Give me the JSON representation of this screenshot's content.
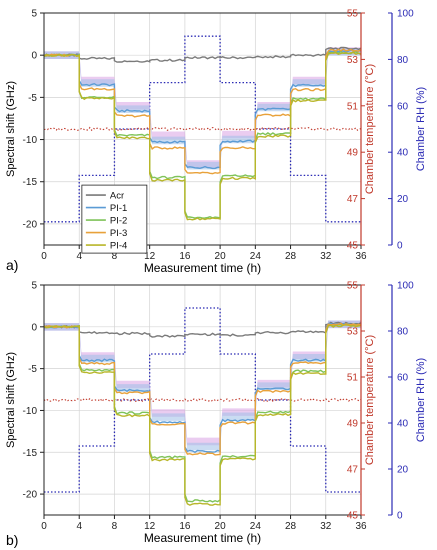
{
  "colors": {
    "Acr": "#7a7a7a",
    "PI-1": "#5b9bd5",
    "PI-2": "#7fc35a",
    "PI-3": "#e8a13a",
    "PI-4": "#b8b62a",
    "temperature_axis": "#c0392b",
    "rh_axis": "#2b2bb5",
    "band_pink": "#d9a3e3",
    "band_blue": "#9fbfe8"
  },
  "chart_data": [
    {
      "panel_label": "a)",
      "type": "line",
      "xlabel": "Measurement time (h)",
      "ylabel": "Spectral shift (GHz)",
      "y2label": "Chamber temperature (°C)",
      "y3label": "Chamber RH (%)",
      "xlim": [
        0,
        36
      ],
      "ylim": [
        -22.5,
        5
      ],
      "y2lim": [
        45,
        55
      ],
      "y3lim": [
        0,
        100
      ],
      "xticks": [
        0,
        4,
        8,
        12,
        16,
        20,
        24,
        28,
        32,
        36
      ],
      "yticks": [
        5,
        0,
        -5,
        -10,
        -15,
        -20
      ],
      "y2ticks": [
        55,
        53,
        51,
        49,
        47,
        45
      ],
      "y3ticks": [
        100,
        80,
        60,
        40,
        20,
        0
      ],
      "grid": true,
      "legend": {
        "position": "lower-left",
        "entries": [
          "Acr",
          "PI-1",
          "PI-2",
          "PI-3",
          "PI-4"
        ]
      },
      "step_times": [
        0,
        4,
        8,
        12,
        16,
        20,
        24,
        28,
        32,
        36
      ],
      "series": [
        {
          "name": "Acr",
          "values": [
            0,
            -0.4,
            -0.7,
            -0.6,
            -0.3,
            -0.3,
            -0.2,
            0,
            0.8
          ]
        },
        {
          "name": "PI-1",
          "values": [
            0,
            -3.5,
            -6.6,
            -10.3,
            -13.3,
            -10.2,
            -6.4,
            -3.6,
            0.5
          ]
        },
        {
          "name": "PI-2",
          "values": [
            0,
            -5.0,
            -9.5,
            -14.5,
            -19.2,
            -14.3,
            -9.3,
            -5.2,
            0.3
          ]
        },
        {
          "name": "PI-3",
          "values": [
            0,
            -4.0,
            -7.2,
            -11.0,
            -14.0,
            -11.0,
            -7.1,
            -4.1,
            0.6
          ]
        },
        {
          "name": "PI-4",
          "values": [
            0,
            -5.1,
            -9.8,
            -14.8,
            -19.4,
            -14.6,
            -9.6,
            -5.4,
            0.2
          ]
        }
      ],
      "band_series": [
        {
          "color": "pink",
          "values": [
            0,
            -3.0,
            -6.0,
            -9.5,
            -12.9,
            -9.4,
            -6.0,
            -3.0,
            0.5
          ]
        },
        {
          "color": "blue",
          "values": [
            0,
            -3.3,
            -6.4,
            -10.1,
            -13.1,
            -10.0,
            -6.2,
            -3.3,
            0.4
          ]
        }
      ],
      "temperature_C": 50.0,
      "rh_pct": [
        10,
        30,
        50,
        70,
        90,
        70,
        50,
        30,
        10
      ]
    },
    {
      "panel_label": "b)",
      "type": "line",
      "xlabel": "Measurement time (h)",
      "ylabel": "Spectral shift (GHz)",
      "y2label": "Chamber temperature (°C)",
      "y3label": "Chamber RH (%)",
      "xlim": [
        0,
        36
      ],
      "ylim": [
        -22.5,
        5
      ],
      "y2lim": [
        45,
        55
      ],
      "y3lim": [
        0,
        100
      ],
      "xticks": [
        0,
        4,
        8,
        12,
        16,
        20,
        24,
        28,
        32,
        36
      ],
      "yticks": [
        5,
        0,
        -5,
        -10,
        -15,
        -20
      ],
      "y2ticks": [
        55,
        53,
        51,
        49,
        47,
        45
      ],
      "y3ticks": [
        100,
        80,
        60,
        40,
        20,
        0
      ],
      "grid": true,
      "step_times": [
        0,
        4,
        8,
        12,
        16,
        20,
        24,
        28,
        32,
        36
      ],
      "series": [
        {
          "name": "Acr",
          "values": [
            0,
            -0.7,
            -0.8,
            -1.1,
            -0.9,
            -1.0,
            -0.7,
            -0.6,
            0.4
          ]
        },
        {
          "name": "PI-1",
          "values": [
            0,
            -4.0,
            -7.6,
            -11.4,
            -14.9,
            -11.2,
            -7.4,
            -4.0,
            0.3
          ]
        },
        {
          "name": "PI-2",
          "values": [
            0,
            -5.2,
            -10.3,
            -15.6,
            -20.8,
            -15.5,
            -10.2,
            -5.3,
            0.2
          ]
        },
        {
          "name": "PI-3",
          "values": [
            0,
            -4.4,
            -7.9,
            -11.6,
            -15.2,
            -11.5,
            -7.7,
            -4.3,
            0.3
          ]
        },
        {
          "name": "PI-4",
          "values": [
            0,
            -5.5,
            -10.6,
            -15.9,
            -21.2,
            -15.8,
            -10.5,
            -5.6,
            0.1
          ]
        }
      ],
      "band_series": [
        {
          "color": "pink",
          "values": [
            0,
            -3.5,
            -6.9,
            -10.3,
            -13.7,
            -10.2,
            -6.8,
            -3.4,
            0.3
          ]
        },
        {
          "color": "blue",
          "values": [
            0,
            -3.8,
            -7.3,
            -10.8,
            -14.3,
            -10.7,
            -7.1,
            -3.7,
            0.3
          ]
        }
      ],
      "temperature_C": 50.0,
      "rh_pct": [
        10,
        30,
        50,
        70,
        90,
        70,
        50,
        30,
        10
      ]
    }
  ]
}
